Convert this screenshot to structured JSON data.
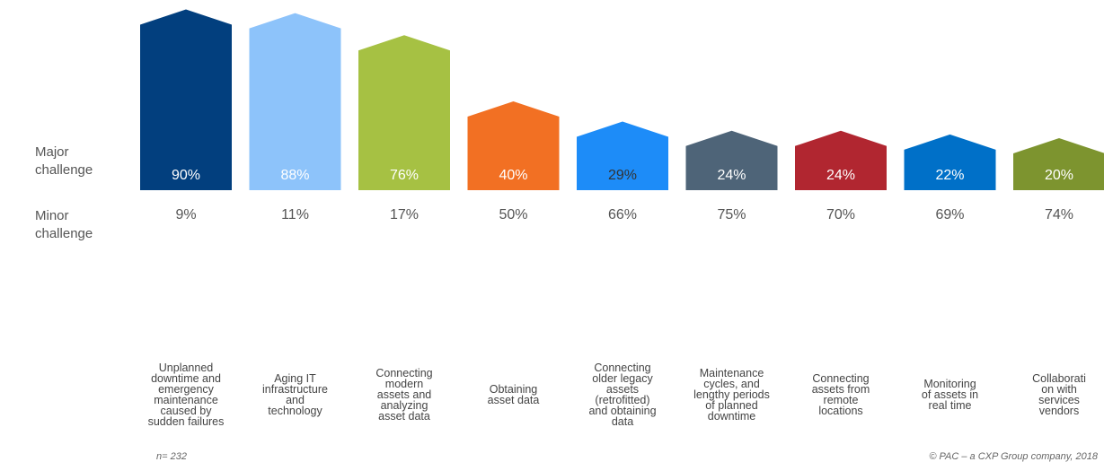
{
  "chart_data": {
    "type": "bar",
    "row_labels": {
      "major": "Major\nchallenge",
      "minor": "Minor\nchallenge"
    },
    "categories": [
      "Unplanned downtime and emergency maintenance caused by sudden failures",
      "Aging IT infrastructure and technology",
      "Connecting modern assets and analyzing asset data",
      "Obtaining asset data",
      "Connecting older legacy assets (retrofitted) and obtaining data",
      "Maintenance cycles, and lengthy periods of planned downtime",
      "Connecting assets from remote locations",
      "Monitoring of assets in real time",
      "Collaborati on with services vendors"
    ],
    "category_lines": [
      [
        "Unplanned",
        "downtime and",
        "emergency",
        "maintenance",
        "caused by",
        "sudden failures"
      ],
      [
        "Aging IT",
        "infrastructure",
        "and",
        "technology"
      ],
      [
        "Connecting",
        "modern",
        "assets and",
        "analyzing",
        "asset data"
      ],
      [
        "Obtaining",
        "asset data"
      ],
      [
        "Connecting",
        "older legacy",
        "assets",
        "(retrofitted)",
        "and obtaining",
        "data"
      ],
      [
        "Maintenance",
        "cycles, and",
        "lengthy periods",
        "of planned",
        "downtime"
      ],
      [
        "Connecting",
        "assets from",
        "remote",
        "locations"
      ],
      [
        "Monitoring",
        "of assets in",
        "real time"
      ],
      [
        "Collaborati",
        "on with",
        "services",
        "vendors"
      ]
    ],
    "series": [
      {
        "name": "Major challenge",
        "values": [
          90,
          88,
          76,
          40,
          29,
          24,
          24,
          22,
          20
        ],
        "labels": [
          "90%",
          "88%",
          "76%",
          "40%",
          "29%",
          "24%",
          "24%",
          "22%",
          "20%"
        ]
      },
      {
        "name": "Minor challenge",
        "values": [
          9,
          11,
          17,
          50,
          66,
          75,
          70,
          69,
          74
        ],
        "labels": [
          "9%",
          "11%",
          "17%",
          "50%",
          "66%",
          "75%",
          "70%",
          "69%",
          "74%"
        ]
      }
    ],
    "colors": [
      "#023F7E",
      "#8DC3FA",
      "#A6C143",
      "#F27023",
      "#1D8CF8",
      "#4E6478",
      "#B12630",
      "#0070C8",
      "#7D942F"
    ],
    "label_colors": [
      "#ffffff",
      "#ffffff",
      "#ffffff",
      "#ffffff",
      "#333333",
      "#ffffff",
      "#ffffff",
      "#ffffff",
      "#ffffff"
    ],
    "ylim": [
      0,
      100
    ]
  },
  "footer": {
    "sample": "n= 232",
    "copyright": "© PAC – a CXP Group company, 2018"
  }
}
